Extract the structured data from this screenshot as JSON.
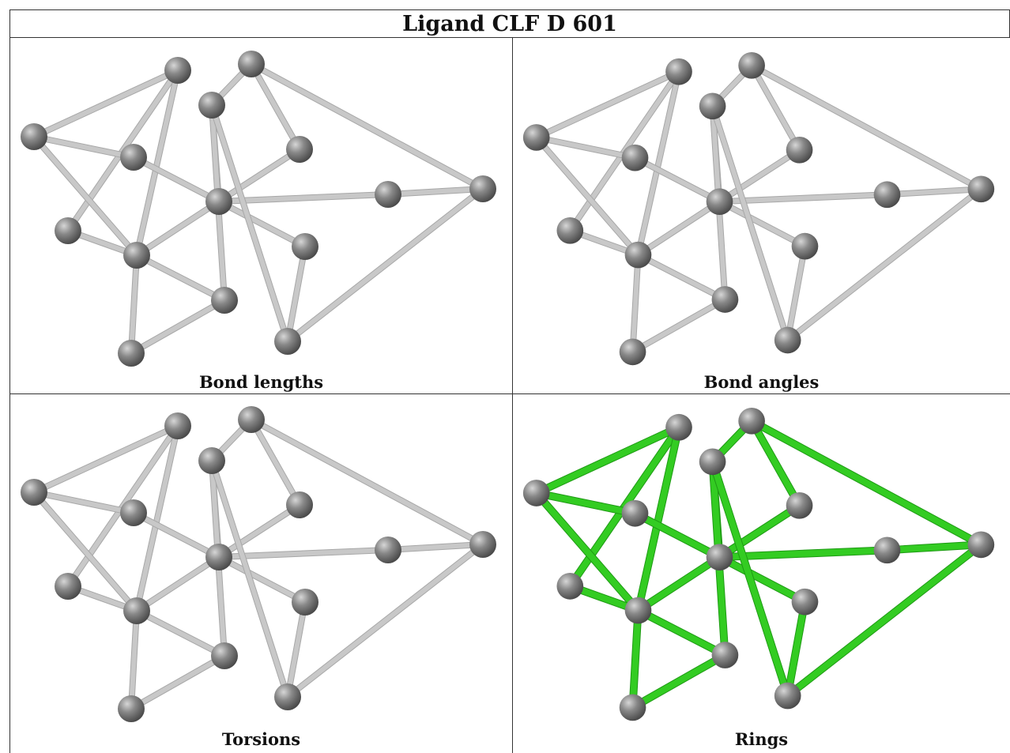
{
  "title": "Ligand CLF D 601",
  "panels": [
    {
      "caption": "Bond lengths",
      "highlight": false
    },
    {
      "caption": "Bond angles",
      "highlight": false
    },
    {
      "caption": "Torsions",
      "highlight": false
    },
    {
      "caption": "Rings",
      "highlight": true
    }
  ],
  "colors": {
    "atom": "#7a7a7a",
    "bond_default": "#c8c8c8",
    "bond_ring": "#33cc22",
    "border": "#333333"
  }
}
